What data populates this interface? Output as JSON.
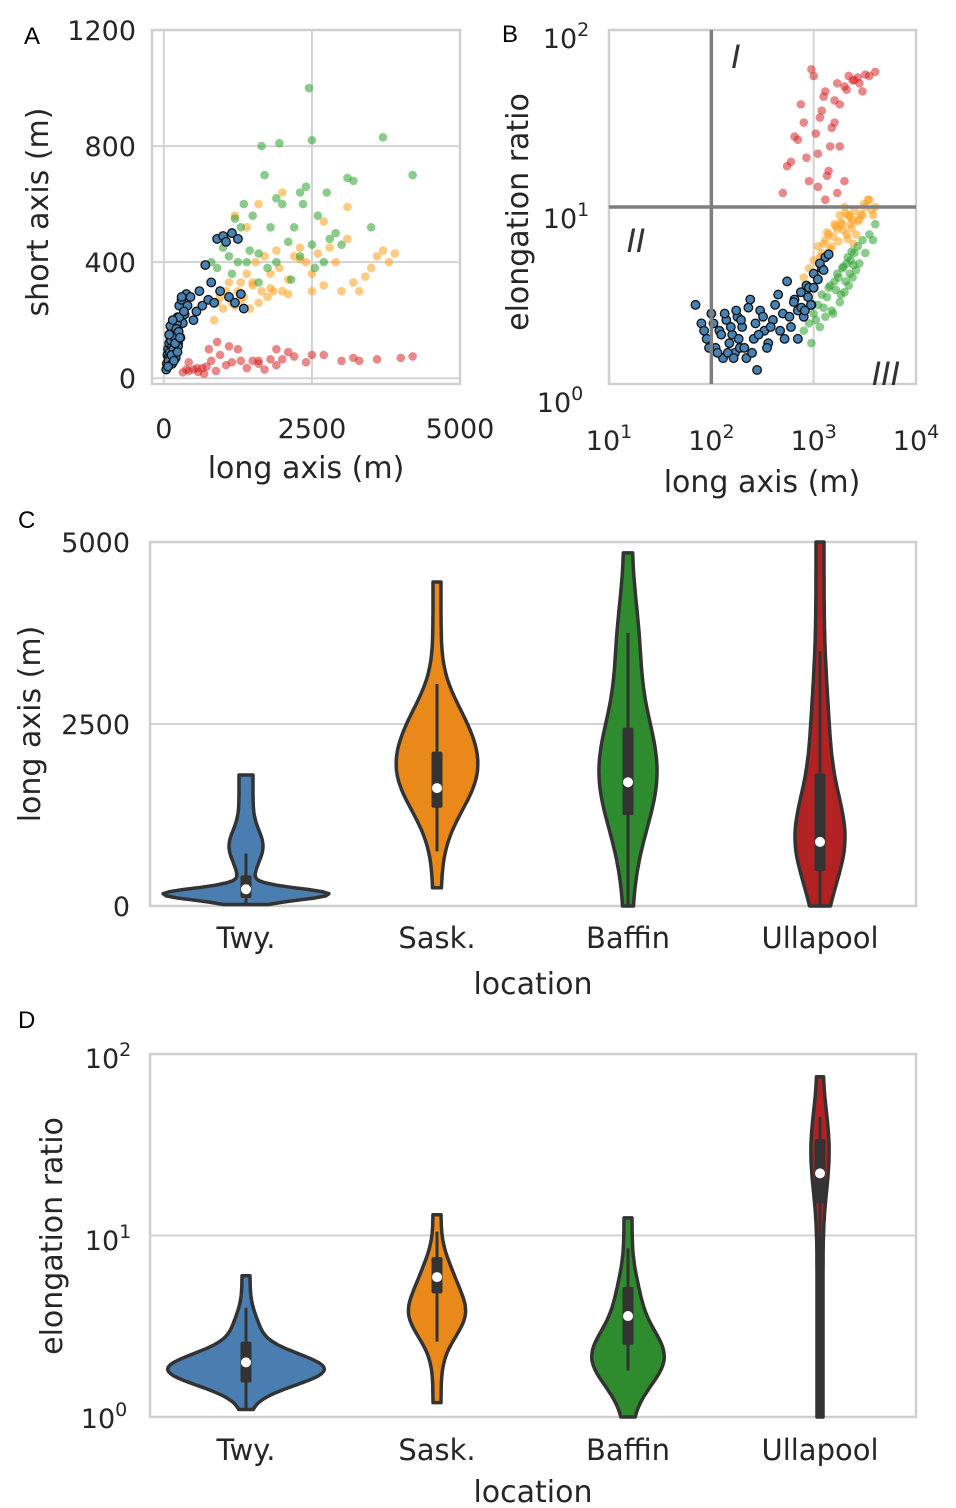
{
  "chart_data": [
    {
      "panel": "A",
      "type": "scatter",
      "xlabel": "long axis (m)",
      "ylabel": "short axis (m)",
      "xlim": [
        -200,
        5000
      ],
      "ylim": [
        -20,
        1200
      ],
      "xticks": [
        0,
        2500,
        5000
      ],
      "yticks": [
        0,
        400,
        800,
        1200
      ],
      "grid": true,
      "series": [
        {
          "color": "#d62728",
          "x": [
            320,
            380,
            420,
            500,
            580,
            650,
            720,
            800,
            880,
            950,
            1050,
            1150,
            1250,
            1400,
            1500,
            1600,
            1700,
            1800,
            1900,
            2000,
            2200,
            2400,
            2700,
            3000,
            3200,
            3600,
            4000,
            4200,
            420,
            560,
            680,
            760,
            900,
            1100,
            1300,
            1600,
            1900,
            2100,
            2500,
            3300
          ],
          "y": [
            20,
            30,
            25,
            30,
            22,
            35,
            40,
            60,
            25,
            80,
            45,
            55,
            100,
            35,
            60,
            60,
            30,
            65,
            100,
            65,
            75,
            55,
            80,
            60,
            70,
            65,
            70,
            75,
            55,
            35,
            15,
            100,
            125,
            110,
            60,
            50,
            45,
            90,
            80,
            60
          ]
        },
        {
          "color": "#ff9f1c",
          "x": [
            850,
            900,
            950,
            1000,
            1050,
            1100,
            1150,
            1200,
            1250,
            1300,
            1350,
            1400,
            1450,
            1500,
            1550,
            1600,
            1650,
            1700,
            1750,
            1800,
            1850,
            1900,
            1950,
            2000,
            2100,
            2200,
            2300,
            2400,
            2500,
            2600,
            2700,
            2800,
            2900,
            3000,
            3100,
            3200,
            3300,
            3400,
            3500,
            3600,
            3700,
            3800,
            3900,
            1200,
            1400,
            1600,
            2000,
            2300,
            2700,
            3100,
            1300,
            1500,
            1800,
            2100,
            2500
          ],
          "y": [
            200,
            260,
            280,
            240,
            300,
            330,
            260,
            250,
            300,
            330,
            280,
            360,
            240,
            320,
            400,
            260,
            300,
            420,
            280,
            360,
            300,
            440,
            380,
            300,
            340,
            420,
            450,
            400,
            360,
            430,
            320,
            450,
            400,
            300,
            480,
            330,
            300,
            350,
            380,
            420,
            440,
            400,
            430,
            560,
            520,
            600,
            640,
            410,
            540,
            590,
            270,
            330,
            310,
            290,
            300
          ]
        },
        {
          "color": "#2ca02c",
          "x": [
            800,
            900,
            1000,
            1050,
            1100,
            1200,
            1300,
            1350,
            1400,
            1500,
            1600,
            1700,
            1800,
            1900,
            2000,
            2100,
            2200,
            2300,
            2400,
            2500,
            2600,
            2700,
            2800,
            2900,
            3000,
            3200,
            3500,
            3700,
            4200,
            1150,
            1250,
            1450,
            1650,
            1750,
            1950,
            2150,
            2350,
            2550,
            2750,
            3100,
            1600,
            1900,
            2300,
            2500,
            2450
          ],
          "y": [
            400,
            380,
            450,
            480,
            420,
            550,
            520,
            600,
            400,
            560,
            430,
            700,
            520,
            620,
            600,
            470,
            520,
            640,
            660,
            820,
            560,
            400,
            480,
            500,
            460,
            680,
            520,
            830,
            700,
            360,
            400,
            440,
            800,
            380,
            810,
            340,
            600,
            380,
            640,
            690,
            330,
            400,
            420,
            460,
            1000
          ]
        },
        {
          "color": "#4682b4",
          "outline": true,
          "x": [
            40,
            50,
            60,
            70,
            80,
            90,
            100,
            110,
            120,
            130,
            140,
            150,
            160,
            170,
            180,
            190,
            200,
            210,
            220,
            230,
            240,
            250,
            260,
            280,
            300,
            320,
            350,
            380,
            400,
            450,
            500,
            550,
            600,
            650,
            700,
            750,
            800,
            850,
            900,
            950,
            1000,
            1050,
            1100,
            1150,
            1200,
            1250,
            1300,
            1350,
            80,
            100,
            120,
            140,
            160,
            180,
            200,
            220,
            240,
            260,
            70,
            90,
            110,
            130,
            150,
            170,
            190,
            210,
            230,
            250,
            270,
            300,
            340
          ],
          "y": [
            30,
            50,
            80,
            100,
            70,
            120,
            60,
            140,
            90,
            160,
            110,
            70,
            130,
            180,
            100,
            150,
            200,
            90,
            160,
            210,
            120,
            180,
            250,
            140,
            270,
            190,
            220,
            290,
            250,
            280,
            200,
            230,
            300,
            250,
            390,
            270,
            330,
            260,
            480,
            300,
            490,
            470,
            280,
            500,
            260,
            480,
            290,
            240,
            60,
            90,
            130,
            50,
            100,
            140,
            70,
            190,
            110,
            210,
            40,
            150,
            180,
            80,
            200,
            60,
            120,
            170,
            90,
            160,
            140,
            280,
            230
          ]
        }
      ]
    },
    {
      "panel": "B",
      "type": "scatter",
      "xlabel": "long axis (m)",
      "ylabel": "elongation ratio",
      "xscale": "log",
      "yscale": "log",
      "xlim": [
        10,
        10000
      ],
      "ylim": [
        1,
        100
      ],
      "xticks": [
        10,
        100,
        1000,
        10000
      ],
      "yticks": [
        1,
        10,
        100
      ],
      "grid": true,
      "region_lines": {
        "x": 100,
        "y": 10
      },
      "region_labels": [
        "I",
        "II",
        "III"
      ],
      "series": [
        {
          "color": "#d62728",
          "x": [
            500,
            600,
            700,
            800,
            900,
            1000,
            1100,
            1200,
            1300,
            1400,
            1500,
            1600,
            1700,
            1800,
            2000,
            2200,
            2500,
            2800,
            3000,
            3500,
            4000,
            550,
            650,
            750,
            850,
            950,
            1050,
            1150,
            1250,
            1350,
            1450,
            1600,
            1800,
            2100,
            2400,
            2700,
            3200,
            1100,
            1300,
            1700,
            2000
          ],
          "y": [
            12,
            18,
            24,
            30,
            14,
            55,
            20,
            35,
            45,
            16,
            28,
            40,
            50,
            22,
            48,
            55,
            52,
            50,
            45,
            55,
            58,
            17,
            25,
            38,
            19,
            60,
            26,
            32,
            42,
            15,
            22,
            30,
            38,
            46,
            52,
            54,
            56,
            13,
            11,
            12,
            14
          ]
        },
        {
          "color": "#ff9f1c",
          "x": [
            800,
            900,
            1000,
            1100,
            1200,
            1300,
            1400,
            1500,
            1600,
            1700,
            1800,
            1900,
            2000,
            2100,
            2200,
            2300,
            2400,
            2500,
            2600,
            2800,
            3000,
            3200,
            3500,
            3800,
            4000,
            1050,
            1150,
            1250,
            1350,
            1450,
            1550,
            1650,
            1750,
            1850,
            1950,
            2050,
            2150,
            2250,
            2350,
            2450,
            2700,
            2900,
            3100,
            3400,
            3700
          ],
          "y": [
            4,
            4.5,
            5,
            6,
            5.5,
            6.5,
            7,
            6,
            8,
            7.5,
            9,
            8,
            10,
            7,
            9,
            8,
            8.5,
            9.5,
            7,
            8.5,
            9,
            10,
            11,
            9,
            10,
            4.2,
            5.2,
            6.2,
            7.2,
            5.8,
            6.8,
            7.8,
            6.4,
            8.2,
            7.4,
            9.2,
            6.6,
            8.8,
            7.6,
            6.2,
            8.3,
            9.1,
            10.4,
            11,
            9.6
          ]
        },
        {
          "color": "#2ca02c",
          "x": [
            700,
            800,
            900,
            1000,
            1100,
            1200,
            1300,
            1400,
            1500,
            1600,
            1700,
            1800,
            1900,
            2000,
            2100,
            2200,
            2300,
            2400,
            2500,
            2600,
            2700,
            2800,
            3000,
            3200,
            3500,
            3800,
            4000,
            950,
            1050,
            1150,
            1250,
            1350,
            1450,
            1550,
            1650,
            1750,
            1850,
            1950,
            2050,
            2150,
            2250,
            2350,
            2450
          ],
          "y": [
            1.8,
            2,
            2.2,
            2.5,
            2.8,
            3.2,
            2.4,
            3.5,
            2.6,
            3.8,
            4.2,
            2.9,
            4.5,
            3.3,
            4.8,
            3.6,
            5,
            4,
            5.5,
            4.4,
            6,
            4.8,
            6.5,
            5.5,
            7,
            6.5,
            8,
            1.7,
            2.3,
            2.1,
            2.7,
            3.1,
            3.6,
            2.5,
            3.4,
            4,
            3.2,
            4.6,
            3.8,
            5.2,
            4.2,
            5.6,
            4.7
          ]
        },
        {
          "color": "#4682b4",
          "outline": true,
          "x": [
            70,
            80,
            90,
            100,
            110,
            120,
            130,
            140,
            150,
            160,
            170,
            180,
            190,
            200,
            220,
            240,
            260,
            280,
            300,
            330,
            360,
            400,
            450,
            500,
            550,
            600,
            650,
            700,
            750,
            800,
            850,
            900,
            950,
            1000,
            1100,
            1200,
            1300,
            85,
            95,
            105,
            115,
            125,
            135,
            145,
            155,
            165,
            175,
            185,
            195,
            210,
            230,
            250,
            270,
            290,
            320,
            350,
            380,
            420,
            470,
            520,
            580,
            640,
            700,
            760,
            820,
            880,
            940,
            1000,
            1150,
            1250,
            1400
          ],
          "y": [
            2.8,
            2.2,
            1.8,
            2.5,
            1.6,
            2,
            1.4,
            2.3,
            1.7,
            1.9,
            1.5,
            2.4,
            1.6,
            2.1,
            1.4,
            3,
            1.8,
            1.2,
            2.6,
            2,
            1.7,
            2.3,
            3.2,
            2.5,
            3.8,
            2.1,
            3,
            2.6,
            3.3,
            2.4,
            3.6,
            3.5,
            2.8,
            4.2,
            3.9,
            4.5,
            5.2,
            2,
            1.6,
            2.2,
            1.5,
            1.9,
            2.5,
            1.5,
            2.1,
            1.4,
            2.6,
            1.8,
            2.3,
            1.6,
            2.7,
            1.5,
            2.2,
            1.9,
            2.4,
            1.6,
            2.1,
            2.8,
            2,
            1.8,
            2.4,
            2.9,
            1.8,
            2.7,
            2.6,
            3.1,
            2.8,
            3.5,
            4.8,
            4.4,
            5.4
          ]
        }
      ]
    },
    {
      "panel": "C",
      "type": "violin",
      "xlabel": "location",
      "ylabel": "long axis (m)",
      "ylim": [
        0,
        5000
      ],
      "yticks": [
        0,
        2500,
        5000
      ],
      "grid": true,
      "categories": [
        "Twy.",
        "Sask.",
        "Baffin",
        "Ullapool"
      ],
      "colors": [
        "#4a7db0",
        "#e8891a",
        "#2e8b2e",
        "#b22222"
      ],
      "median": [
        230,
        1620,
        1700,
        880
      ],
      "q1": [
        110,
        1350,
        1250,
        480
      ],
      "q3": [
        420,
        2120,
        2450,
        1820
      ],
      "whisker_low": [
        30,
        750,
        0,
        0
      ],
      "whisker_high": [
        720,
        3050,
        3750,
        3500
      ],
      "min": [
        20,
        250,
        0,
        0
      ],
      "max": [
        1800,
        4450,
        4850,
        5000
      ]
    },
    {
      "panel": "D",
      "type": "violin",
      "xlabel": "location",
      "ylabel": "elongation ratio",
      "yscale": "log",
      "ylim": [
        1,
        100
      ],
      "yticks": [
        1,
        10,
        100
      ],
      "grid": true,
      "categories": [
        "Twy.",
        "Sask.",
        "Baffin",
        "Ullapool"
      ],
      "colors": [
        "#4a7db0",
        "#e8891a",
        "#2e8b2e",
        "#b22222"
      ],
      "median": [
        2.0,
        5.9,
        3.6,
        22
      ],
      "q1": [
        1.55,
        4.8,
        2.5,
        15
      ],
      "q3": [
        2.6,
        7.6,
        5.2,
        34
      ],
      "whisker_low": [
        1.1,
        2.6,
        1.8,
        1.0
      ],
      "whisker_high": [
        4.0,
        10.5,
        8.5,
        45
      ],
      "min": [
        1.1,
        1.2,
        1.0,
        1.0
      ],
      "max": [
        6,
        13,
        12.5,
        75
      ]
    }
  ],
  "labels": {
    "panel_a": "A",
    "panel_b": "B",
    "panel_c": "C",
    "panel_d": "D",
    "region_1": "I",
    "region_2": "II",
    "region_3": "III"
  }
}
